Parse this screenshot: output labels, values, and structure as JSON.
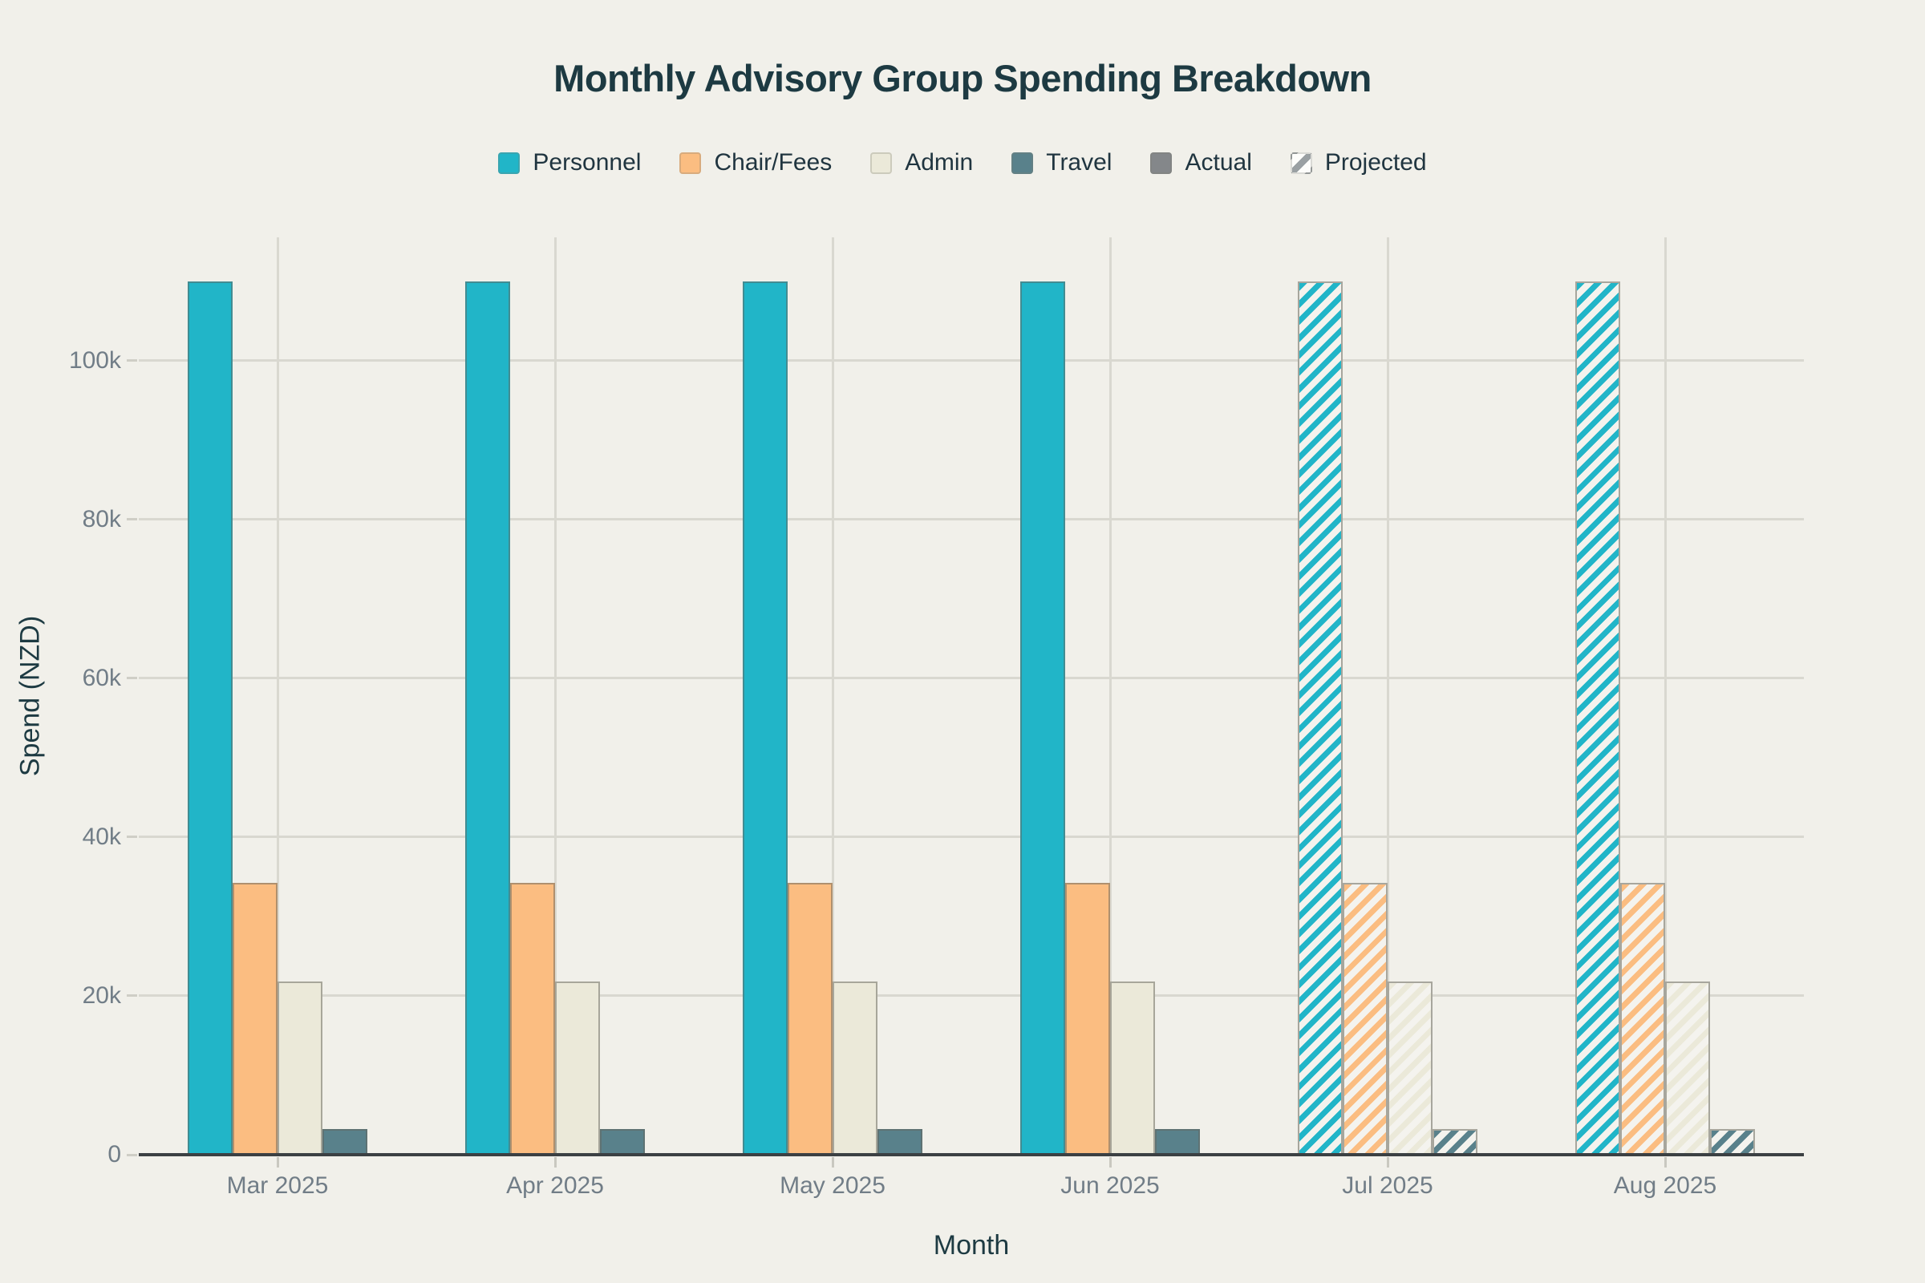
{
  "title": "Monthly Advisory Group Spending Breakdown",
  "colors": {
    "background": "#f1f0ea",
    "title_text": "#1d3a42",
    "tick_text": "#717d87",
    "gridline": "#d9d8d0",
    "axis_line": "#3b4043",
    "hatch_base": "#f4f3ee",
    "hatched_bar_border": "#a7a69d",
    "solid_bar_border": "rgba(100,100,92,0.5)",
    "personnel": "#21b5c8",
    "chair_fees": "#fbbd81",
    "admin": "#ebe9d9",
    "travel": "#59818b",
    "actual": "#84878a",
    "projected_stripe": "#9aa0a3"
  },
  "legend": {
    "items": [
      {
        "label": "Personnel",
        "color": "#21b5c8",
        "style": "solid"
      },
      {
        "label": "Chair/Fees",
        "color": "#fbbd81",
        "style": "solid"
      },
      {
        "label": "Admin",
        "color": "#ebe9d9",
        "style": "solid"
      },
      {
        "label": "Travel",
        "color": "#59818b",
        "style": "solid"
      },
      {
        "label": "Actual",
        "color": "#84878a",
        "style": "solid"
      },
      {
        "label": "Projected",
        "color": "#9aa0a3",
        "style": "hatch"
      }
    ]
  },
  "chart_data": {
    "type": "bar",
    "title": "Monthly Advisory Group Spending Breakdown",
    "xlabel": "Month",
    "ylabel": "Spend (NZD)",
    "categories": [
      "Mar 2025",
      "Apr 2025",
      "May 2025",
      "Jun 2025",
      "Jul 2025",
      "Aug 2025"
    ],
    "actual_categories": [
      "Mar 2025",
      "Apr 2025",
      "May 2025",
      "Jun 2025"
    ],
    "projected_categories": [
      "Jul 2025",
      "Aug 2025"
    ],
    "series": [
      {
        "name": "Personnel",
        "color": "#21b5c8",
        "values": [
          110000,
          110000,
          110000,
          110000,
          110000,
          110000
        ]
      },
      {
        "name": "Chair/Fees",
        "color": "#fbbd81",
        "values": [
          34200,
          34200,
          34200,
          34200,
          34200,
          34200
        ]
      },
      {
        "name": "Admin",
        "color": "#ebe9d9",
        "values": [
          21800,
          21800,
          21800,
          21800,
          21800,
          21800
        ]
      },
      {
        "name": "Travel",
        "color": "#59818b",
        "values": [
          3200,
          3200,
          3200,
          3200,
          3200,
          3200
        ]
      }
    ],
    "yticks": [
      {
        "label": "0",
        "value": 0
      },
      {
        "label": "20k",
        "value": 20000
      },
      {
        "label": "40k",
        "value": 40000
      },
      {
        "label": "60k",
        "value": 60000
      },
      {
        "label": "80k",
        "value": 80000
      },
      {
        "label": "100k",
        "value": 100000
      }
    ],
    "ylim": [
      0,
      115500
    ],
    "grid": true,
    "legend_position": "top",
    "style_note": "Mar-Jun bars solid (Actual); Jul-Aug bars hatched (Projected)"
  }
}
